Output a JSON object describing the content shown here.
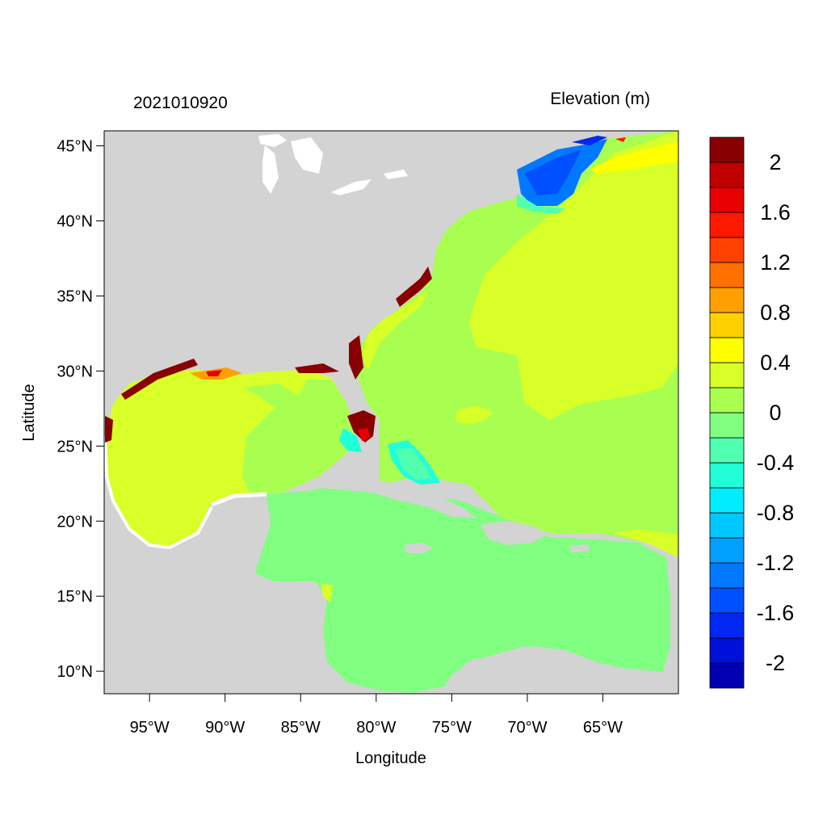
{
  "header": {
    "timestamp": "2021010920",
    "variable": "Elevation (m)"
  },
  "axes": {
    "xlabel": "Longitude",
    "ylabel": "Latitude",
    "lon_range": [
      -98,
      -60
    ],
    "lat_range": [
      8.5,
      46
    ],
    "x_ticks": [
      {
        "value": -95,
        "label": "95°W"
      },
      {
        "value": -90,
        "label": "90°W"
      },
      {
        "value": -85,
        "label": "85°W"
      },
      {
        "value": -80,
        "label": "80°W"
      },
      {
        "value": -75,
        "label": "75°W"
      },
      {
        "value": -70,
        "label": "70°W"
      },
      {
        "value": -65,
        "label": "65°W"
      }
    ],
    "y_ticks": [
      {
        "value": 10,
        "label": "10°N"
      },
      {
        "value": 15,
        "label": "15°N"
      },
      {
        "value": 20,
        "label": "20°N"
      },
      {
        "value": 25,
        "label": "25°N"
      },
      {
        "value": 30,
        "label": "30°N"
      },
      {
        "value": 35,
        "label": "35°N"
      },
      {
        "value": 40,
        "label": "40°N"
      },
      {
        "value": 45,
        "label": "45°N"
      }
    ]
  },
  "colorbar": {
    "colors": [
      "#0000b0",
      "#0010d8",
      "#0028f0",
      "#0050ff",
      "#0078ff",
      "#00a0ff",
      "#00c8ff",
      "#00ecff",
      "#20ffd8",
      "#50ffb0",
      "#80ff80",
      "#a8ff50",
      "#d8ff28",
      "#ffff00",
      "#ffd000",
      "#ffa000",
      "#ff7000",
      "#ff4000",
      "#ff1800",
      "#e80000",
      "#c00000",
      "#880000"
    ],
    "labels": [
      "2",
      "1.6",
      "1.2",
      "0.8",
      "0.4",
      "0",
      "-0.4",
      "-0.8",
      "-1.2",
      "-1.6",
      "-2"
    ]
  },
  "colors": {
    "land": "#d3d3d3",
    "water_white": "#ffffff",
    "atlantic": "#a8ff50",
    "gulf": "#d8ff28",
    "caribbean": "#80ff80",
    "surge_high": "#880000",
    "gulf_of_maine": "#0078ff"
  }
}
